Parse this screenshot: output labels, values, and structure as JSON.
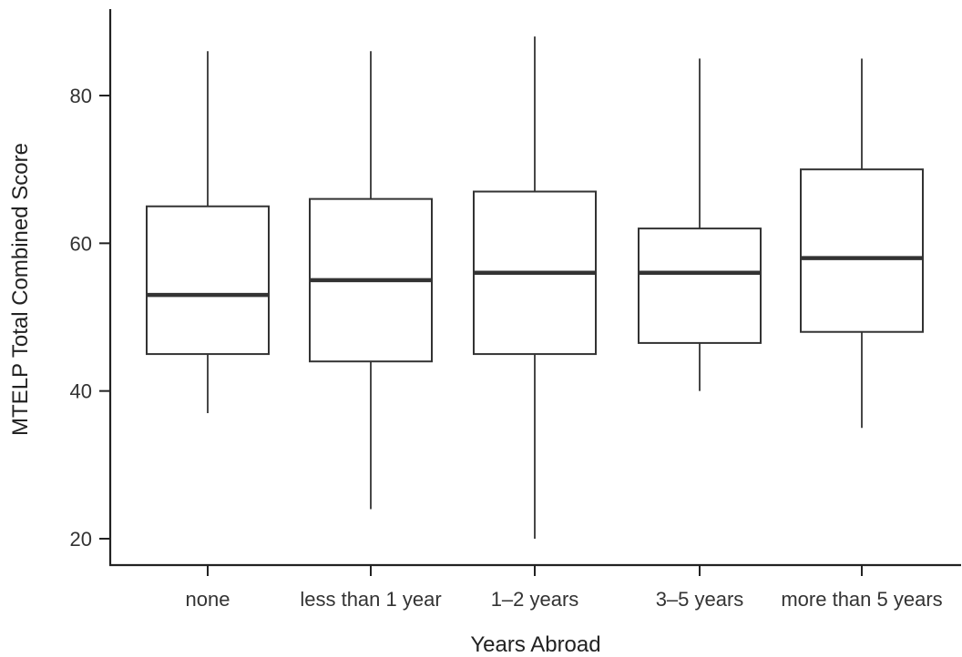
{
  "chart_data": {
    "type": "box",
    "title": "",
    "xlabel": "Years Abroad",
    "ylabel": "MTELP Total Combined Score",
    "ylim": [
      17,
      90
    ],
    "yticks": [
      20,
      40,
      60,
      80
    ],
    "grid": false,
    "categories": [
      "none",
      "less than 1 year",
      "1–2 years",
      "3–5 years",
      "more than 5 years"
    ],
    "boxes": [
      {
        "min": 37,
        "q1": 45,
        "median": 53,
        "q3": 65,
        "max": 86
      },
      {
        "min": 24,
        "q1": 44,
        "median": 55,
        "q3": 66,
        "max": 86
      },
      {
        "min": 20,
        "q1": 45,
        "median": 56,
        "q3": 67,
        "max": 88
      },
      {
        "min": 40,
        "q1": 46.5,
        "median": 56,
        "q3": 62,
        "max": 85
      },
      {
        "min": 35,
        "q1": 48,
        "median": 58,
        "q3": 70,
        "max": 85
      }
    ]
  }
}
